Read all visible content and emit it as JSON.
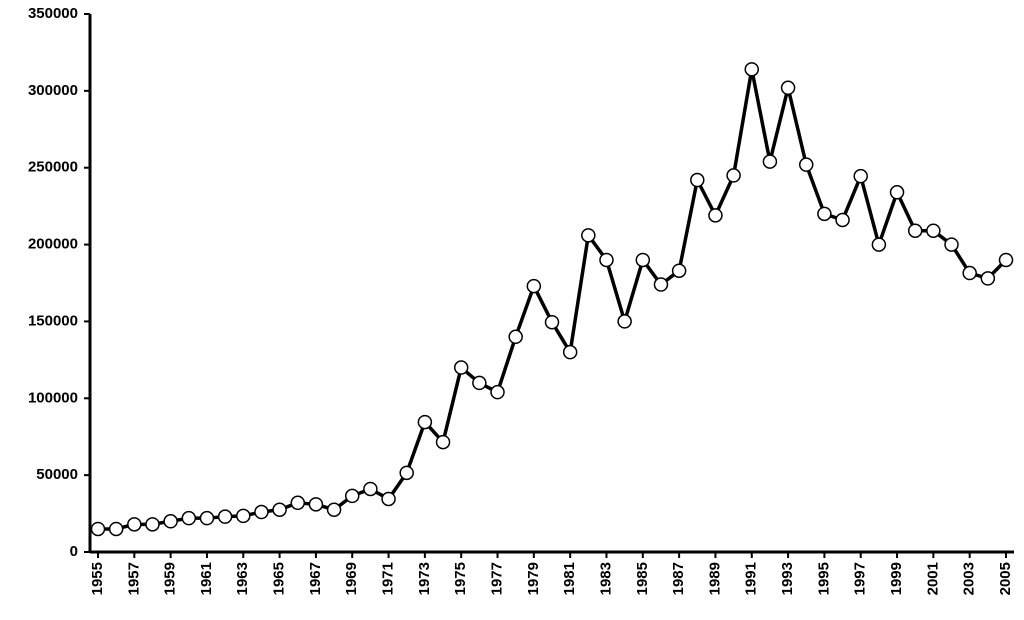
{
  "chart_data": {
    "type": "line",
    "x": [
      1955,
      1956,
      1957,
      1958,
      1959,
      1960,
      1961,
      1962,
      1963,
      1964,
      1965,
      1966,
      1967,
      1968,
      1969,
      1970,
      1971,
      1972,
      1973,
      1974,
      1975,
      1976,
      1977,
      1978,
      1979,
      1980,
      1981,
      1982,
      1983,
      1984,
      1985,
      1986,
      1987,
      1988,
      1989,
      1990,
      1991,
      1992,
      1993,
      1994,
      1995,
      1996,
      1997,
      1998,
      1999,
      2000,
      2001,
      2002,
      2003,
      2004,
      2005
    ],
    "series": [
      {
        "color": "#000000",
        "marker_fill": "#ffffff",
        "values": [
          15000,
          15000,
          18000,
          18000,
          20000,
          22000,
          22000,
          23000,
          23500,
          26000,
          27500,
          32000,
          31000,
          27500,
          36500,
          41000,
          34500,
          51500,
          84500,
          71500,
          120000,
          110000,
          104000,
          140000,
          173000,
          149500,
          130000,
          206000,
          190000,
          150000,
          190000,
          174000,
          183000,
          242000,
          219000,
          245000,
          314000,
          254000,
          302000,
          252000,
          220000,
          216000,
          244500,
          200000,
          234000,
          209000,
          209000,
          200000,
          181500,
          178000,
          190000
        ]
      }
    ],
    "xlim": [
      1955,
      2005
    ],
    "xticks": [
      1955,
      1957,
      1959,
      1961,
      1963,
      1965,
      1967,
      1969,
      1971,
      1973,
      1975,
      1977,
      1979,
      1981,
      1983,
      1985,
      1987,
      1989,
      1991,
      1993,
      1995,
      1997,
      1999,
      2001,
      2003,
      2005
    ],
    "ylim": [
      0,
      350000
    ],
    "yticks": [
      0,
      50000,
      100000,
      150000,
      200000,
      250000,
      300000,
      350000
    ],
    "grid": false
  }
}
